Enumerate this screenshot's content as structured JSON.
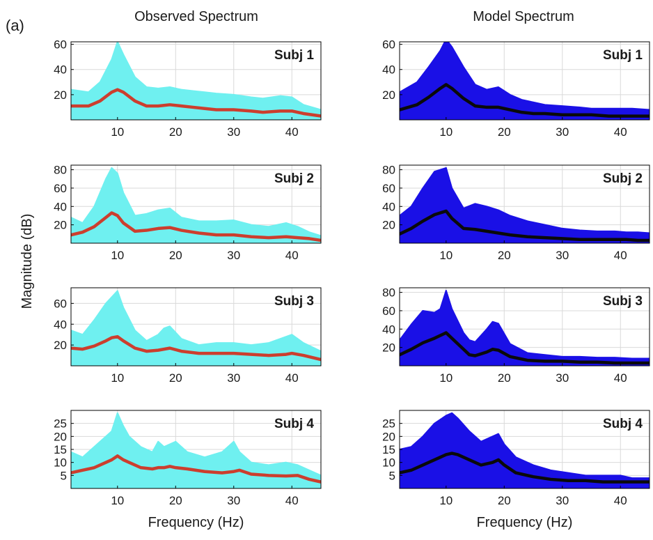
{
  "figure": {
    "panel_label": "(a)",
    "ylabel": "Magnitude (dB)",
    "columns": [
      "Observed Spectrum",
      "Model Spectrum"
    ]
  },
  "colors": {
    "observed_band": "#6ff0f0",
    "observed_mean": "#cc3e2e",
    "model_band": "#1a10e6",
    "model_mean": "#0a0a0a",
    "grid": "#d9d9d9",
    "axis": "#000000"
  },
  "chart_data": [
    {
      "type": "area",
      "column": "Observed Spectrum",
      "subject": "Subj 1",
      "xlabel": "",
      "grid": true,
      "xlim": [
        2,
        45
      ],
      "ylim": [
        0,
        62
      ],
      "xticks": [
        10,
        20,
        30,
        40
      ],
      "yticks": [
        20,
        40,
        60
      ],
      "x": [
        2,
        5,
        7,
        9,
        10,
        11,
        13,
        15,
        17,
        19,
        21,
        23,
        25,
        27,
        30,
        33,
        35,
        38,
        40,
        42,
        45
      ],
      "series": [
        {
          "role": "band_upper",
          "values": [
            24,
            22,
            30,
            48,
            62,
            52,
            34,
            26,
            25,
            26,
            24,
            23,
            22,
            21,
            20,
            18,
            17,
            19,
            18,
            12,
            8
          ]
        },
        {
          "role": "mean",
          "values": [
            11,
            11,
            15,
            22,
            24,
            22,
            15,
            11,
            11,
            12,
            11,
            10,
            9,
            8,
            8,
            7,
            6,
            7,
            7,
            5,
            3
          ]
        }
      ]
    },
    {
      "type": "line",
      "column": "Model Spectrum",
      "subject": "Subj 1",
      "xlabel": "",
      "grid": true,
      "xlim": [
        2,
        45
      ],
      "ylim": [
        0,
        62
      ],
      "xticks": [
        10,
        20,
        30,
        40
      ],
      "yticks": [
        20,
        40,
        60
      ],
      "x": [
        2,
        5,
        7,
        9,
        10,
        11,
        13,
        15,
        17,
        19,
        21,
        23,
        25,
        27,
        30,
        33,
        35,
        38,
        40,
        42,
        45
      ],
      "series": [
        {
          "role": "band_upper",
          "values": [
            22,
            30,
            42,
            55,
            64,
            58,
            42,
            28,
            24,
            26,
            20,
            16,
            14,
            12,
            11,
            10,
            9,
            9,
            9,
            9,
            8
          ]
        },
        {
          "role": "mean",
          "values": [
            8,
            12,
            18,
            25,
            28,
            25,
            17,
            11,
            10,
            10,
            8,
            6,
            5,
            5,
            4,
            4,
            4,
            3,
            3,
            3,
            3
          ]
        }
      ]
    },
    {
      "type": "area",
      "column": "Observed Spectrum",
      "subject": "Subj 2",
      "xlabel": "",
      "grid": true,
      "xlim": [
        2,
        45
      ],
      "ylim": [
        0,
        85
      ],
      "xticks": [
        10,
        20,
        30,
        40
      ],
      "yticks": [
        20,
        40,
        60,
        80
      ],
      "x": [
        2,
        4,
        6,
        8,
        9,
        10,
        11,
        13,
        15,
        17,
        19,
        21,
        24,
        27,
        30,
        33,
        36,
        39,
        41,
        43,
        45
      ],
      "series": [
        {
          "role": "band_upper",
          "values": [
            28,
            22,
            40,
            70,
            82,
            76,
            55,
            30,
            32,
            36,
            38,
            28,
            24,
            24,
            25,
            20,
            18,
            22,
            18,
            12,
            8
          ]
        },
        {
          "role": "mean",
          "values": [
            9,
            12,
            18,
            28,
            33,
            30,
            22,
            13,
            14,
            16,
            17,
            14,
            11,
            9,
            9,
            7,
            6,
            7,
            6,
            5,
            3
          ]
        }
      ]
    },
    {
      "type": "line",
      "column": "Model Spectrum",
      "subject": "Subj 2",
      "xlabel": "",
      "grid": true,
      "xlim": [
        2,
        45
      ],
      "ylim": [
        0,
        85
      ],
      "xticks": [
        10,
        20,
        30,
        40
      ],
      "yticks": [
        20,
        40,
        60,
        80
      ],
      "x": [
        2,
        4,
        6,
        8,
        9,
        10,
        11,
        13,
        15,
        17,
        19,
        21,
        24,
        27,
        30,
        33,
        36,
        39,
        41,
        43,
        45
      ],
      "series": [
        {
          "role": "band_upper",
          "values": [
            30,
            40,
            60,
            78,
            80,
            82,
            60,
            38,
            43,
            40,
            36,
            30,
            24,
            20,
            16,
            14,
            13,
            13,
            12,
            12,
            11
          ]
        },
        {
          "role": "mean",
          "values": [
            10,
            16,
            24,
            31,
            33,
            35,
            27,
            16,
            15,
            13,
            11,
            9,
            7,
            6,
            5,
            4,
            4,
            4,
            4,
            3,
            3
          ]
        }
      ]
    },
    {
      "type": "area",
      "column": "Observed Spectrum",
      "subject": "Subj 3",
      "xlabel": "",
      "grid": true,
      "xlim": [
        2,
        45
      ],
      "ylim": [
        0,
        75
      ],
      "xticks": [
        10,
        20,
        30,
        40
      ],
      "yticks": [
        20,
        40,
        60
      ],
      "x": [
        2,
        4,
        6,
        8,
        9,
        10,
        11,
        13,
        15,
        17,
        18,
        19,
        21,
        24,
        27,
        30,
        33,
        36,
        39,
        40,
        42,
        45
      ],
      "series": [
        {
          "role": "band_upper",
          "values": [
            34,
            30,
            44,
            60,
            66,
            72,
            56,
            34,
            24,
            30,
            36,
            38,
            26,
            20,
            22,
            22,
            20,
            22,
            28,
            30,
            22,
            14
          ]
        },
        {
          "role": "mean",
          "values": [
            17,
            16,
            19,
            24,
            27,
            28,
            24,
            17,
            14,
            15,
            16,
            17,
            14,
            12,
            12,
            12,
            11,
            10,
            11,
            12,
            10,
            6
          ]
        }
      ]
    },
    {
      "type": "line",
      "column": "Model Spectrum",
      "subject": "Subj 3",
      "xlabel": "",
      "grid": true,
      "xlim": [
        2,
        45
      ],
      "ylim": [
        0,
        85
      ],
      "xticks": [
        10,
        20,
        30,
        40
      ],
      "yticks": [
        20,
        40,
        60,
        80
      ],
      "x": [
        2,
        4,
        6,
        8,
        9,
        10,
        11,
        13,
        14,
        15,
        17,
        18,
        19,
        21,
        24,
        27,
        30,
        33,
        36,
        39,
        42,
        45
      ],
      "series": [
        {
          "role": "band_upper",
          "values": [
            28,
            45,
            60,
            58,
            62,
            82,
            62,
            36,
            28,
            26,
            40,
            48,
            46,
            24,
            14,
            12,
            10,
            10,
            9,
            9,
            8,
            8
          ]
        },
        {
          "role": "mean",
          "values": [
            12,
            18,
            25,
            30,
            33,
            36,
            30,
            18,
            12,
            11,
            15,
            18,
            17,
            10,
            6,
            5,
            5,
            4,
            4,
            3,
            3,
            3
          ]
        }
      ]
    },
    {
      "type": "area",
      "column": "Observed Spectrum",
      "subject": "Subj 4",
      "xlabel": "Frequency (Hz)",
      "grid": true,
      "xlim": [
        2,
        45
      ],
      "ylim": [
        0,
        30
      ],
      "xticks": [
        10,
        20,
        30,
        40
      ],
      "yticks": [
        5,
        10,
        15,
        20,
        25
      ],
      "x": [
        2,
        4,
        6,
        8,
        9,
        10,
        11,
        12,
        14,
        16,
        17,
        18,
        19,
        20,
        22,
        25,
        28,
        30,
        31,
        33,
        36,
        39,
        41,
        43,
        45
      ],
      "series": [
        {
          "role": "band_upper",
          "values": [
            14,
            12,
            16,
            20,
            22,
            29,
            24,
            20,
            16,
            14,
            18,
            16,
            17,
            18,
            14,
            12,
            14,
            18,
            14,
            10,
            9,
            10,
            9,
            7,
            5
          ]
        },
        {
          "role": "mean",
          "values": [
            6,
            7,
            8,
            10,
            11,
            12.5,
            11,
            10,
            8,
            7.5,
            8,
            8,
            8.5,
            8,
            7.5,
            6.5,
            6,
            6.5,
            7,
            5.5,
            5,
            4.8,
            5,
            3.5,
            2.5
          ]
        }
      ]
    },
    {
      "type": "line",
      "column": "Model Spectrum",
      "subject": "Subj 4",
      "xlabel": "Frequency (Hz)",
      "grid": true,
      "xlim": [
        2,
        45
      ],
      "ylim": [
        0,
        30
      ],
      "xticks": [
        10,
        20,
        30,
        40
      ],
      "yticks": [
        5,
        10,
        15,
        20,
        25
      ],
      "x": [
        2,
        4,
        6,
        8,
        10,
        11,
        12,
        14,
        16,
        18,
        19,
        20,
        22,
        25,
        28,
        31,
        34,
        37,
        40,
        42,
        45
      ],
      "series": [
        {
          "role": "band_upper",
          "values": [
            15,
            16,
            20,
            25,
            28,
            29,
            27,
            22,
            18,
            20,
            21,
            17,
            12,
            9,
            7,
            6,
            5,
            5,
            5,
            4,
            4
          ]
        },
        {
          "role": "mean",
          "values": [
            6,
            7,
            9,
            11,
            13,
            13.5,
            13,
            11,
            9,
            10,
            11,
            9,
            6,
            4.5,
            3.5,
            3,
            3,
            2.5,
            2.5,
            2.5,
            2.5
          ]
        }
      ]
    }
  ]
}
